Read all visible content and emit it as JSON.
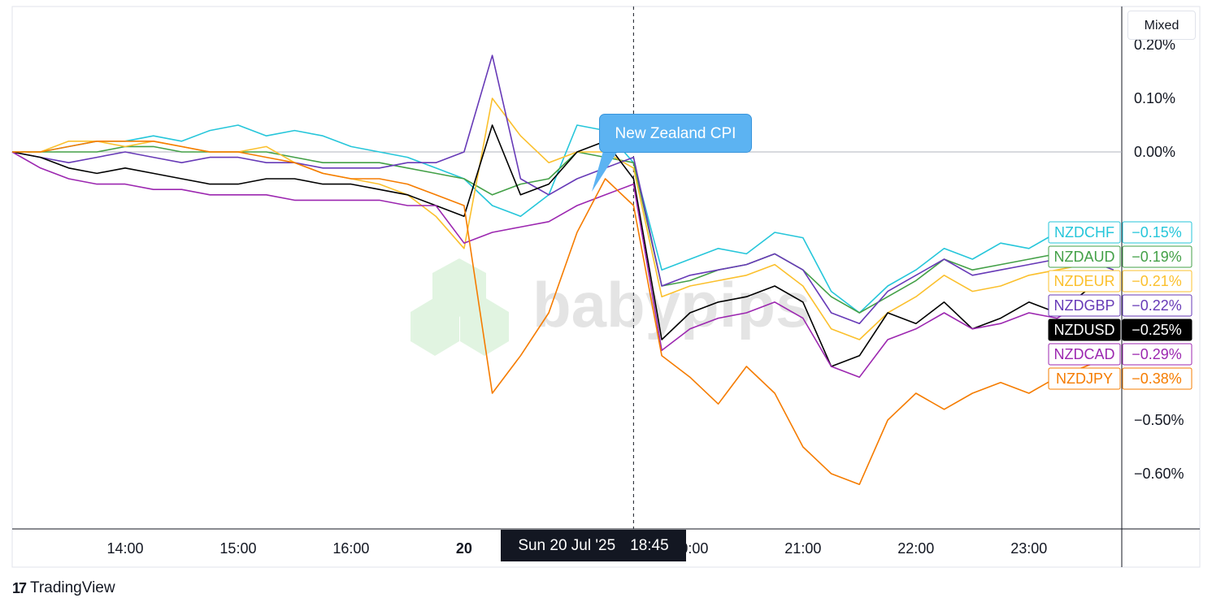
{
  "toolbar": {
    "mode_label": "Mixed"
  },
  "branding": {
    "logo": "17",
    "name": "TradingView",
    "watermark": "babypips"
  },
  "crosshair": {
    "date_label": "Sun 20 Jul '25",
    "time_label": "18:45"
  },
  "event": {
    "label": "New Zealand CPI"
  },
  "colors": {
    "NZDCHF": "#26c6da",
    "NZDAUD": "#43a047",
    "NZDEUR": "#fbc02d",
    "NZDGBP": "#673ab7",
    "NZDUSD": "#000000",
    "NZDCAD": "#9c27b0",
    "NZDJPY": "#f57c00"
  },
  "chart_data": {
    "type": "line",
    "ylabel_unit": "%",
    "ylim": [
      -0.7,
      0.2
    ],
    "yticks": [
      "0.20%",
      "0.10%",
      "0.00%",
      "−0.50%",
      "−0.60%"
    ],
    "yticks_values": [
      0.2,
      0.1,
      0.0,
      -0.5,
      -0.6
    ],
    "xticks": [
      "14:00",
      "15:00",
      "16:00",
      "20",
      "1",
      "20:00",
      "21:00",
      "22:00",
      "23:00"
    ],
    "xticks_index": [
      4,
      8,
      12,
      16,
      20,
      24,
      28,
      32,
      36
    ],
    "event_index": 22,
    "series": [
      {
        "name": "NZDCHF",
        "last_label": "−0.15%",
        "values": [
          0.0,
          0.0,
          0.01,
          0.02,
          0.02,
          0.03,
          0.02,
          0.04,
          0.05,
          0.03,
          0.04,
          0.03,
          0.01,
          0.0,
          -0.01,
          -0.03,
          -0.05,
          -0.1,
          -0.12,
          -0.08,
          0.05,
          0.04,
          -0.02,
          -0.22,
          -0.2,
          -0.18,
          -0.19,
          -0.15,
          -0.16,
          -0.26,
          -0.3,
          -0.25,
          -0.22,
          -0.18,
          -0.2,
          -0.17,
          -0.18,
          -0.15,
          -0.14,
          -0.15
        ]
      },
      {
        "name": "NZDAUD",
        "last_label": "−0.19%",
        "values": [
          0.0,
          0.0,
          0.0,
          0.0,
          0.01,
          0.01,
          0.0,
          0.0,
          0.0,
          0.0,
          -0.01,
          -0.02,
          -0.02,
          -0.02,
          -0.03,
          -0.04,
          -0.05,
          -0.08,
          -0.06,
          -0.05,
          0.0,
          -0.01,
          -0.02,
          -0.25,
          -0.24,
          -0.22,
          -0.21,
          -0.19,
          -0.22,
          -0.27,
          -0.3,
          -0.27,
          -0.24,
          -0.2,
          -0.22,
          -0.21,
          -0.2,
          -0.19,
          -0.18,
          -0.19
        ]
      },
      {
        "name": "NZDEUR",
        "last_label": "−0.21%",
        "values": [
          0.0,
          0.0,
          0.02,
          0.02,
          0.01,
          0.02,
          0.01,
          0.0,
          0.0,
          0.01,
          -0.02,
          -0.04,
          -0.05,
          -0.06,
          -0.08,
          -0.12,
          -0.18,
          0.1,
          0.03,
          -0.02,
          0.0,
          0.0,
          -0.03,
          -0.27,
          -0.25,
          -0.24,
          -0.23,
          -0.21,
          -0.25,
          -0.33,
          -0.35,
          -0.3,
          -0.27,
          -0.23,
          -0.26,
          -0.25,
          -0.23,
          -0.22,
          -0.21,
          -0.21
        ]
      },
      {
        "name": "NZDGBP",
        "last_label": "−0.22%",
        "values": [
          0.0,
          -0.01,
          -0.02,
          -0.01,
          0.0,
          -0.01,
          -0.02,
          -0.01,
          -0.01,
          -0.02,
          -0.02,
          -0.03,
          -0.03,
          -0.03,
          -0.02,
          -0.02,
          0.0,
          0.18,
          -0.05,
          -0.08,
          -0.05,
          -0.03,
          -0.01,
          -0.25,
          -0.23,
          -0.22,
          -0.21,
          -0.19,
          -0.22,
          -0.3,
          -0.32,
          -0.26,
          -0.23,
          -0.2,
          -0.23,
          -0.22,
          -0.21,
          -0.2,
          -0.2,
          -0.22
        ]
      },
      {
        "name": "NZDUSD",
        "last_label": "−0.25%",
        "values": [
          0.0,
          -0.01,
          -0.03,
          -0.04,
          -0.03,
          -0.04,
          -0.05,
          -0.06,
          -0.06,
          -0.05,
          -0.05,
          -0.06,
          -0.06,
          -0.07,
          -0.08,
          -0.1,
          -0.12,
          0.05,
          -0.08,
          -0.06,
          0.0,
          0.02,
          -0.05,
          -0.35,
          -0.3,
          -0.28,
          -0.27,
          -0.25,
          -0.28,
          -0.4,
          -0.38,
          -0.3,
          -0.32,
          -0.28,
          -0.33,
          -0.31,
          -0.28,
          -0.3,
          -0.26,
          -0.25
        ]
      },
      {
        "name": "NZDCAD",
        "last_label": "−0.29%",
        "values": [
          0.0,
          -0.03,
          -0.05,
          -0.06,
          -0.06,
          -0.07,
          -0.07,
          -0.08,
          -0.08,
          -0.08,
          -0.09,
          -0.09,
          -0.09,
          -0.09,
          -0.1,
          -0.1,
          -0.17,
          -0.15,
          -0.14,
          -0.13,
          -0.1,
          -0.08,
          -0.06,
          -0.37,
          -0.33,
          -0.31,
          -0.3,
          -0.28,
          -0.31,
          -0.4,
          -0.42,
          -0.35,
          -0.33,
          -0.3,
          -0.33,
          -0.32,
          -0.3,
          -0.31,
          -0.28,
          -0.29
        ]
      },
      {
        "name": "NZDJPY",
        "last_label": "−0.38%",
        "values": [
          0.0,
          0.0,
          0.01,
          0.02,
          0.02,
          0.02,
          0.01,
          0.0,
          0.0,
          -0.01,
          -0.02,
          -0.04,
          -0.05,
          -0.05,
          -0.06,
          -0.08,
          -0.1,
          -0.45,
          -0.38,
          -0.3,
          -0.15,
          -0.05,
          -0.1,
          -0.38,
          -0.42,
          -0.47,
          -0.4,
          -0.45,
          -0.55,
          -0.6,
          -0.62,
          -0.5,
          -0.45,
          -0.48,
          -0.45,
          -0.43,
          -0.45,
          -0.42,
          -0.4,
          -0.38
        ]
      }
    ]
  }
}
